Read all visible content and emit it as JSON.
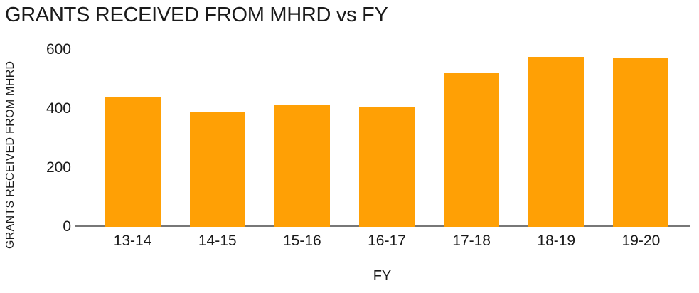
{
  "chart_data": {
    "type": "bar",
    "title": "GRANTS RECEIVED FROM MHRD vs FY",
    "xlabel": "FY",
    "ylabel": "GRANTS RECEIVED FROM MHRD",
    "categories": [
      "13-14",
      "14-15",
      "15-16",
      "16-17",
      "17-18",
      "18-19",
      "19-20"
    ],
    "values": [
      440,
      390,
      415,
      405,
      520,
      575,
      570
    ],
    "ylim": [
      0,
      600
    ],
    "yticks": [
      0,
      200,
      400,
      600
    ],
    "grid": false,
    "legend": "none",
    "bar_color": "#ffa005",
    "axis_color": "#777777",
    "text_color": "#1a1a1a"
  }
}
